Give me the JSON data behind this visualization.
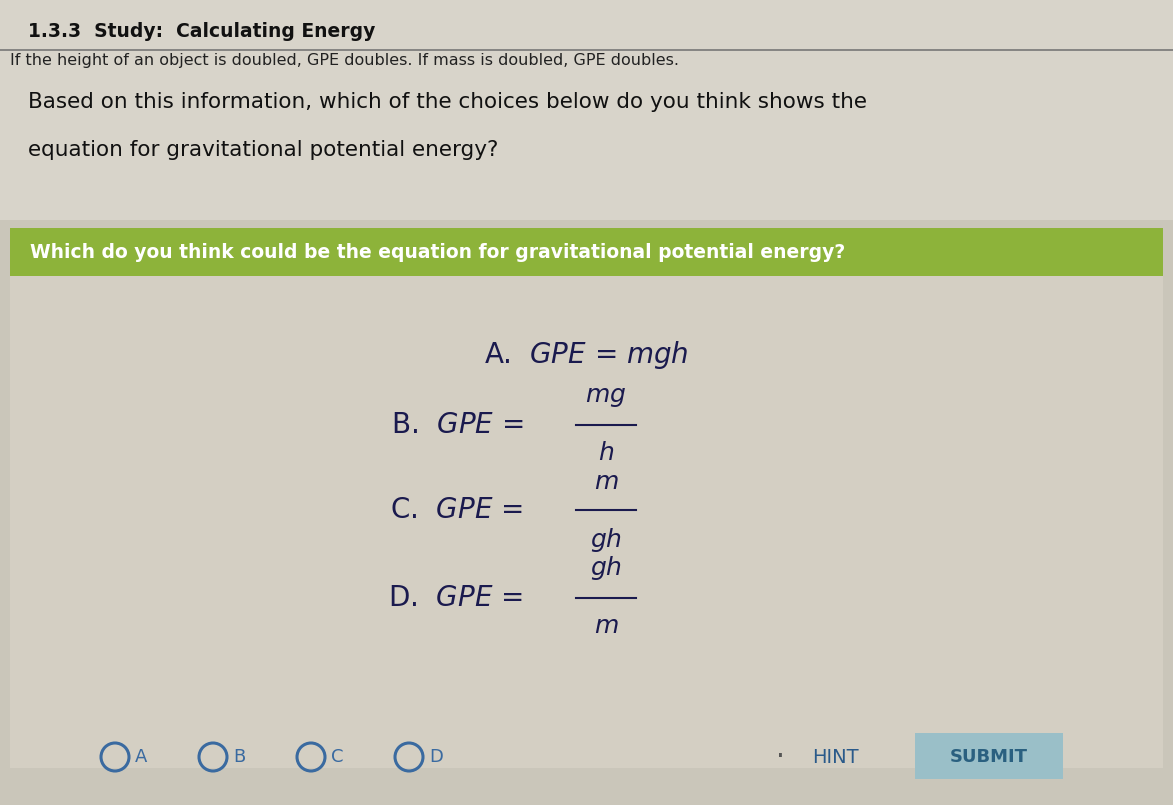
{
  "title": "1.3.3  Study:  Calculating Energy",
  "scrolled_text": "If the height of an object is doubled, GPE doubles. If mass is doubled, GPE doubles.",
  "body_line1": "Based on this information, which of the choices below do you think shows the",
  "body_line2": "equation for gravitational potential energy?",
  "question_box_text": "Which do you think could be the equation for gravitational potential energy?",
  "question_box_bg": "#8db33a",
  "question_box_text_color": "#ffffff",
  "answer_area_bg": "#d4cfc3",
  "answer_text_color": "#1a1a4e",
  "bg_color": "#cac6ba",
  "top_bg_color": "#d8d4ca",
  "hint_text": "HINT",
  "submit_text": "SUBMIT",
  "submit_bg": "#9abfc8",
  "hint_color": "#2a5a8a",
  "submit_color": "#2a6080",
  "title_color": "#111111",
  "body_text_color": "#111111",
  "scrolled_text_color": "#222222",
  "radio_color": "#3a6aa0",
  "line_color": "#777777"
}
